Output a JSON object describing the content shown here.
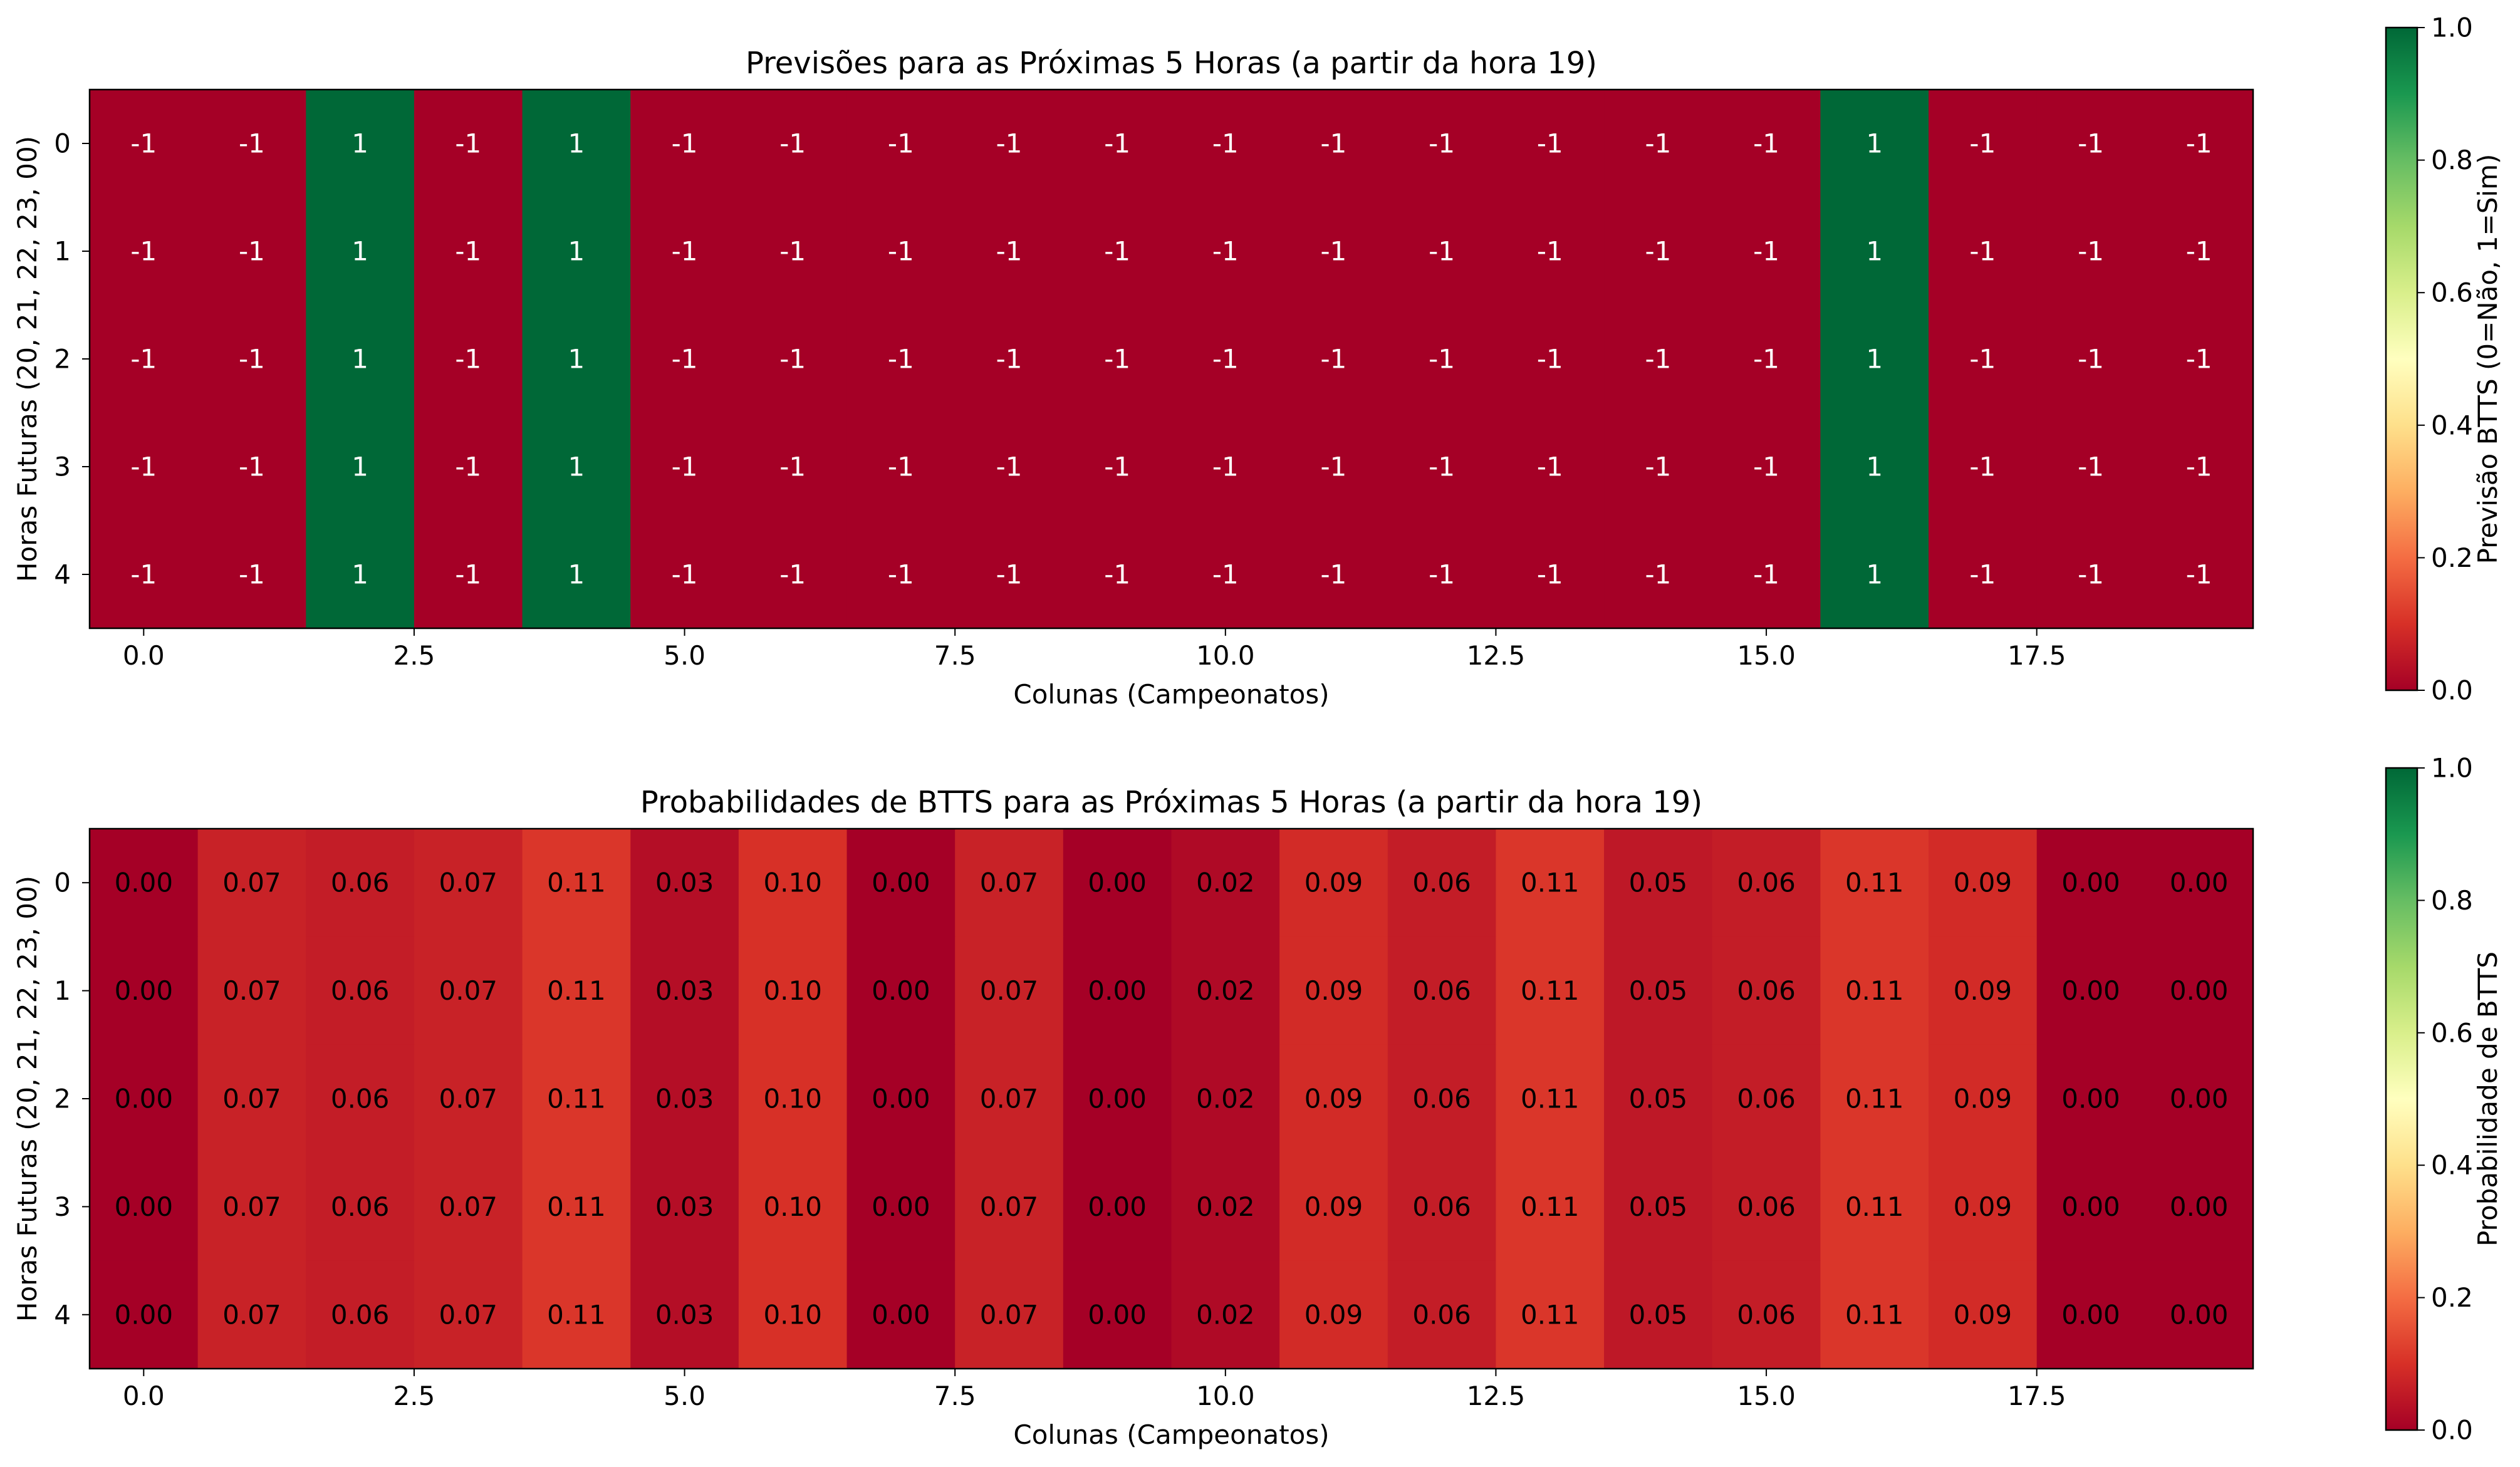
{
  "chart_data": [
    {
      "type": "heatmap",
      "title": "Previsões para as Próximas 5 Horas (a partir da hora 19)",
      "xlabel": "Colunas (Campeonatos)",
      "ylabel": "Horas Futuras (20, 21, 22, 23, 00)",
      "x_ticks": [
        "0.0",
        "2.5",
        "5.0",
        "7.5",
        "10.0",
        "12.5",
        "15.0",
        "17.5"
      ],
      "y_ticks": [
        "0",
        "1",
        "2",
        "3",
        "4"
      ],
      "cell_labels": [
        [
          "-1",
          "-1",
          "1",
          "-1",
          "1",
          "-1",
          "-1",
          "-1",
          "-1",
          "-1",
          "-1",
          "-1",
          "-1",
          "-1",
          "-1",
          "-1",
          "1",
          "-1",
          "-1",
          "-1"
        ],
        [
          "-1",
          "-1",
          "1",
          "-1",
          "1",
          "-1",
          "-1",
          "-1",
          "-1",
          "-1",
          "-1",
          "-1",
          "-1",
          "-1",
          "-1",
          "-1",
          "1",
          "-1",
          "-1",
          "-1"
        ],
        [
          "-1",
          "-1",
          "1",
          "-1",
          "1",
          "-1",
          "-1",
          "-1",
          "-1",
          "-1",
          "-1",
          "-1",
          "-1",
          "-1",
          "-1",
          "-1",
          "1",
          "-1",
          "-1",
          "-1"
        ],
        [
          "-1",
          "-1",
          "1",
          "-1",
          "1",
          "-1",
          "-1",
          "-1",
          "-1",
          "-1",
          "-1",
          "-1",
          "-1",
          "-1",
          "-1",
          "-1",
          "1",
          "-1",
          "-1",
          "-1"
        ],
        [
          "-1",
          "-1",
          "1",
          "-1",
          "1",
          "-1",
          "-1",
          "-1",
          "-1",
          "-1",
          "-1",
          "-1",
          "-1",
          "-1",
          "-1",
          "-1",
          "1",
          "-1",
          "-1",
          "-1"
        ]
      ],
      "values": [
        [
          -1,
          -1,
          1,
          -1,
          1,
          -1,
          -1,
          -1,
          -1,
          -1,
          -1,
          -1,
          -1,
          -1,
          -1,
          -1,
          1,
          -1,
          -1,
          -1
        ],
        [
          -1,
          -1,
          1,
          -1,
          1,
          -1,
          -1,
          -1,
          -1,
          -1,
          -1,
          -1,
          -1,
          -1,
          -1,
          -1,
          1,
          -1,
          -1,
          -1
        ],
        [
          -1,
          -1,
          1,
          -1,
          1,
          -1,
          -1,
          -1,
          -1,
          -1,
          -1,
          -1,
          -1,
          -1,
          -1,
          -1,
          1,
          -1,
          -1,
          -1
        ],
        [
          -1,
          -1,
          1,
          -1,
          1,
          -1,
          -1,
          -1,
          -1,
          -1,
          -1,
          -1,
          -1,
          -1,
          -1,
          -1,
          1,
          -1,
          -1,
          -1
        ],
        [
          -1,
          -1,
          1,
          -1,
          1,
          -1,
          -1,
          -1,
          -1,
          -1,
          -1,
          -1,
          -1,
          -1,
          -1,
          -1,
          1,
          -1,
          -1,
          -1
        ]
      ],
      "vmin": 0,
      "vmax": 1,
      "colormap": "RdYlGn",
      "label_color": "#ffffff",
      "colorbar": {
        "label": "Previsão BTTS (0=Não, 1=Sim)",
        "ticks": [
          "0.0",
          "0.2",
          "0.4",
          "0.6",
          "0.8",
          "1.0"
        ]
      }
    },
    {
      "type": "heatmap",
      "title": "Probabilidades de BTTS para as Próximas 5 Horas (a partir da hora 19)",
      "xlabel": "Colunas (Campeonatos)",
      "ylabel": "Horas Futuras (20, 21, 22, 23, 00)",
      "x_ticks": [
        "0.0",
        "2.5",
        "5.0",
        "7.5",
        "10.0",
        "12.5",
        "15.0",
        "17.5"
      ],
      "y_ticks": [
        "0",
        "1",
        "2",
        "3",
        "4"
      ],
      "cell_labels": [
        [
          "0.00",
          "0.07",
          "0.06",
          "0.07",
          "0.11",
          "0.03",
          "0.10",
          "0.00",
          "0.07",
          "0.00",
          "0.02",
          "0.09",
          "0.06",
          "0.11",
          "0.05",
          "0.06",
          "0.11",
          "0.09",
          "0.00",
          "0.00"
        ],
        [
          "0.00",
          "0.07",
          "0.06",
          "0.07",
          "0.11",
          "0.03",
          "0.10",
          "0.00",
          "0.07",
          "0.00",
          "0.02",
          "0.09",
          "0.06",
          "0.11",
          "0.05",
          "0.06",
          "0.11",
          "0.09",
          "0.00",
          "0.00"
        ],
        [
          "0.00",
          "0.07",
          "0.06",
          "0.07",
          "0.11",
          "0.03",
          "0.10",
          "0.00",
          "0.07",
          "0.00",
          "0.02",
          "0.09",
          "0.06",
          "0.11",
          "0.05",
          "0.06",
          "0.11",
          "0.09",
          "0.00",
          "0.00"
        ],
        [
          "0.00",
          "0.07",
          "0.06",
          "0.07",
          "0.11",
          "0.03",
          "0.10",
          "0.00",
          "0.07",
          "0.00",
          "0.02",
          "0.09",
          "0.06",
          "0.11",
          "0.05",
          "0.06",
          "0.11",
          "0.09",
          "0.00",
          "0.00"
        ],
        [
          "0.00",
          "0.07",
          "0.06",
          "0.07",
          "0.11",
          "0.03",
          "0.10",
          "0.00",
          "0.07",
          "0.00",
          "0.02",
          "0.09",
          "0.06",
          "0.11",
          "0.05",
          "0.06",
          "0.11",
          "0.09",
          "0.00",
          "0.00"
        ]
      ],
      "values": [
        [
          0.0,
          0.07,
          0.06,
          0.07,
          0.11,
          0.03,
          0.1,
          0.0,
          0.07,
          0.0,
          0.02,
          0.09,
          0.06,
          0.11,
          0.05,
          0.06,
          0.11,
          0.09,
          0.0,
          0.0
        ],
        [
          0.0,
          0.07,
          0.06,
          0.07,
          0.11,
          0.03,
          0.1,
          0.0,
          0.07,
          0.0,
          0.02,
          0.09,
          0.06,
          0.11,
          0.05,
          0.06,
          0.11,
          0.09,
          0.0,
          0.0
        ],
        [
          0.0,
          0.07,
          0.06,
          0.07,
          0.11,
          0.03,
          0.1,
          0.0,
          0.07,
          0.0,
          0.02,
          0.09,
          0.06,
          0.11,
          0.05,
          0.06,
          0.11,
          0.09,
          0.0,
          0.0
        ],
        [
          0.0,
          0.07,
          0.06,
          0.07,
          0.11,
          0.03,
          0.1,
          0.0,
          0.07,
          0.0,
          0.02,
          0.09,
          0.06,
          0.11,
          0.05,
          0.06,
          0.11,
          0.09,
          0.0,
          0.0
        ],
        [
          0.0,
          0.07,
          0.06,
          0.07,
          0.11,
          0.03,
          0.1,
          0.0,
          0.07,
          0.0,
          0.02,
          0.09,
          0.06,
          0.11,
          0.05,
          0.06,
          0.11,
          0.09,
          0.0,
          0.0
        ]
      ],
      "vmin": 0,
      "vmax": 1,
      "colormap": "RdYlGn",
      "label_color": "#000000",
      "colorbar": {
        "label": "Probabilidade de BTTS",
        "ticks": [
          "0.0",
          "0.2",
          "0.4",
          "0.6",
          "0.8",
          "1.0"
        ]
      }
    }
  ]
}
